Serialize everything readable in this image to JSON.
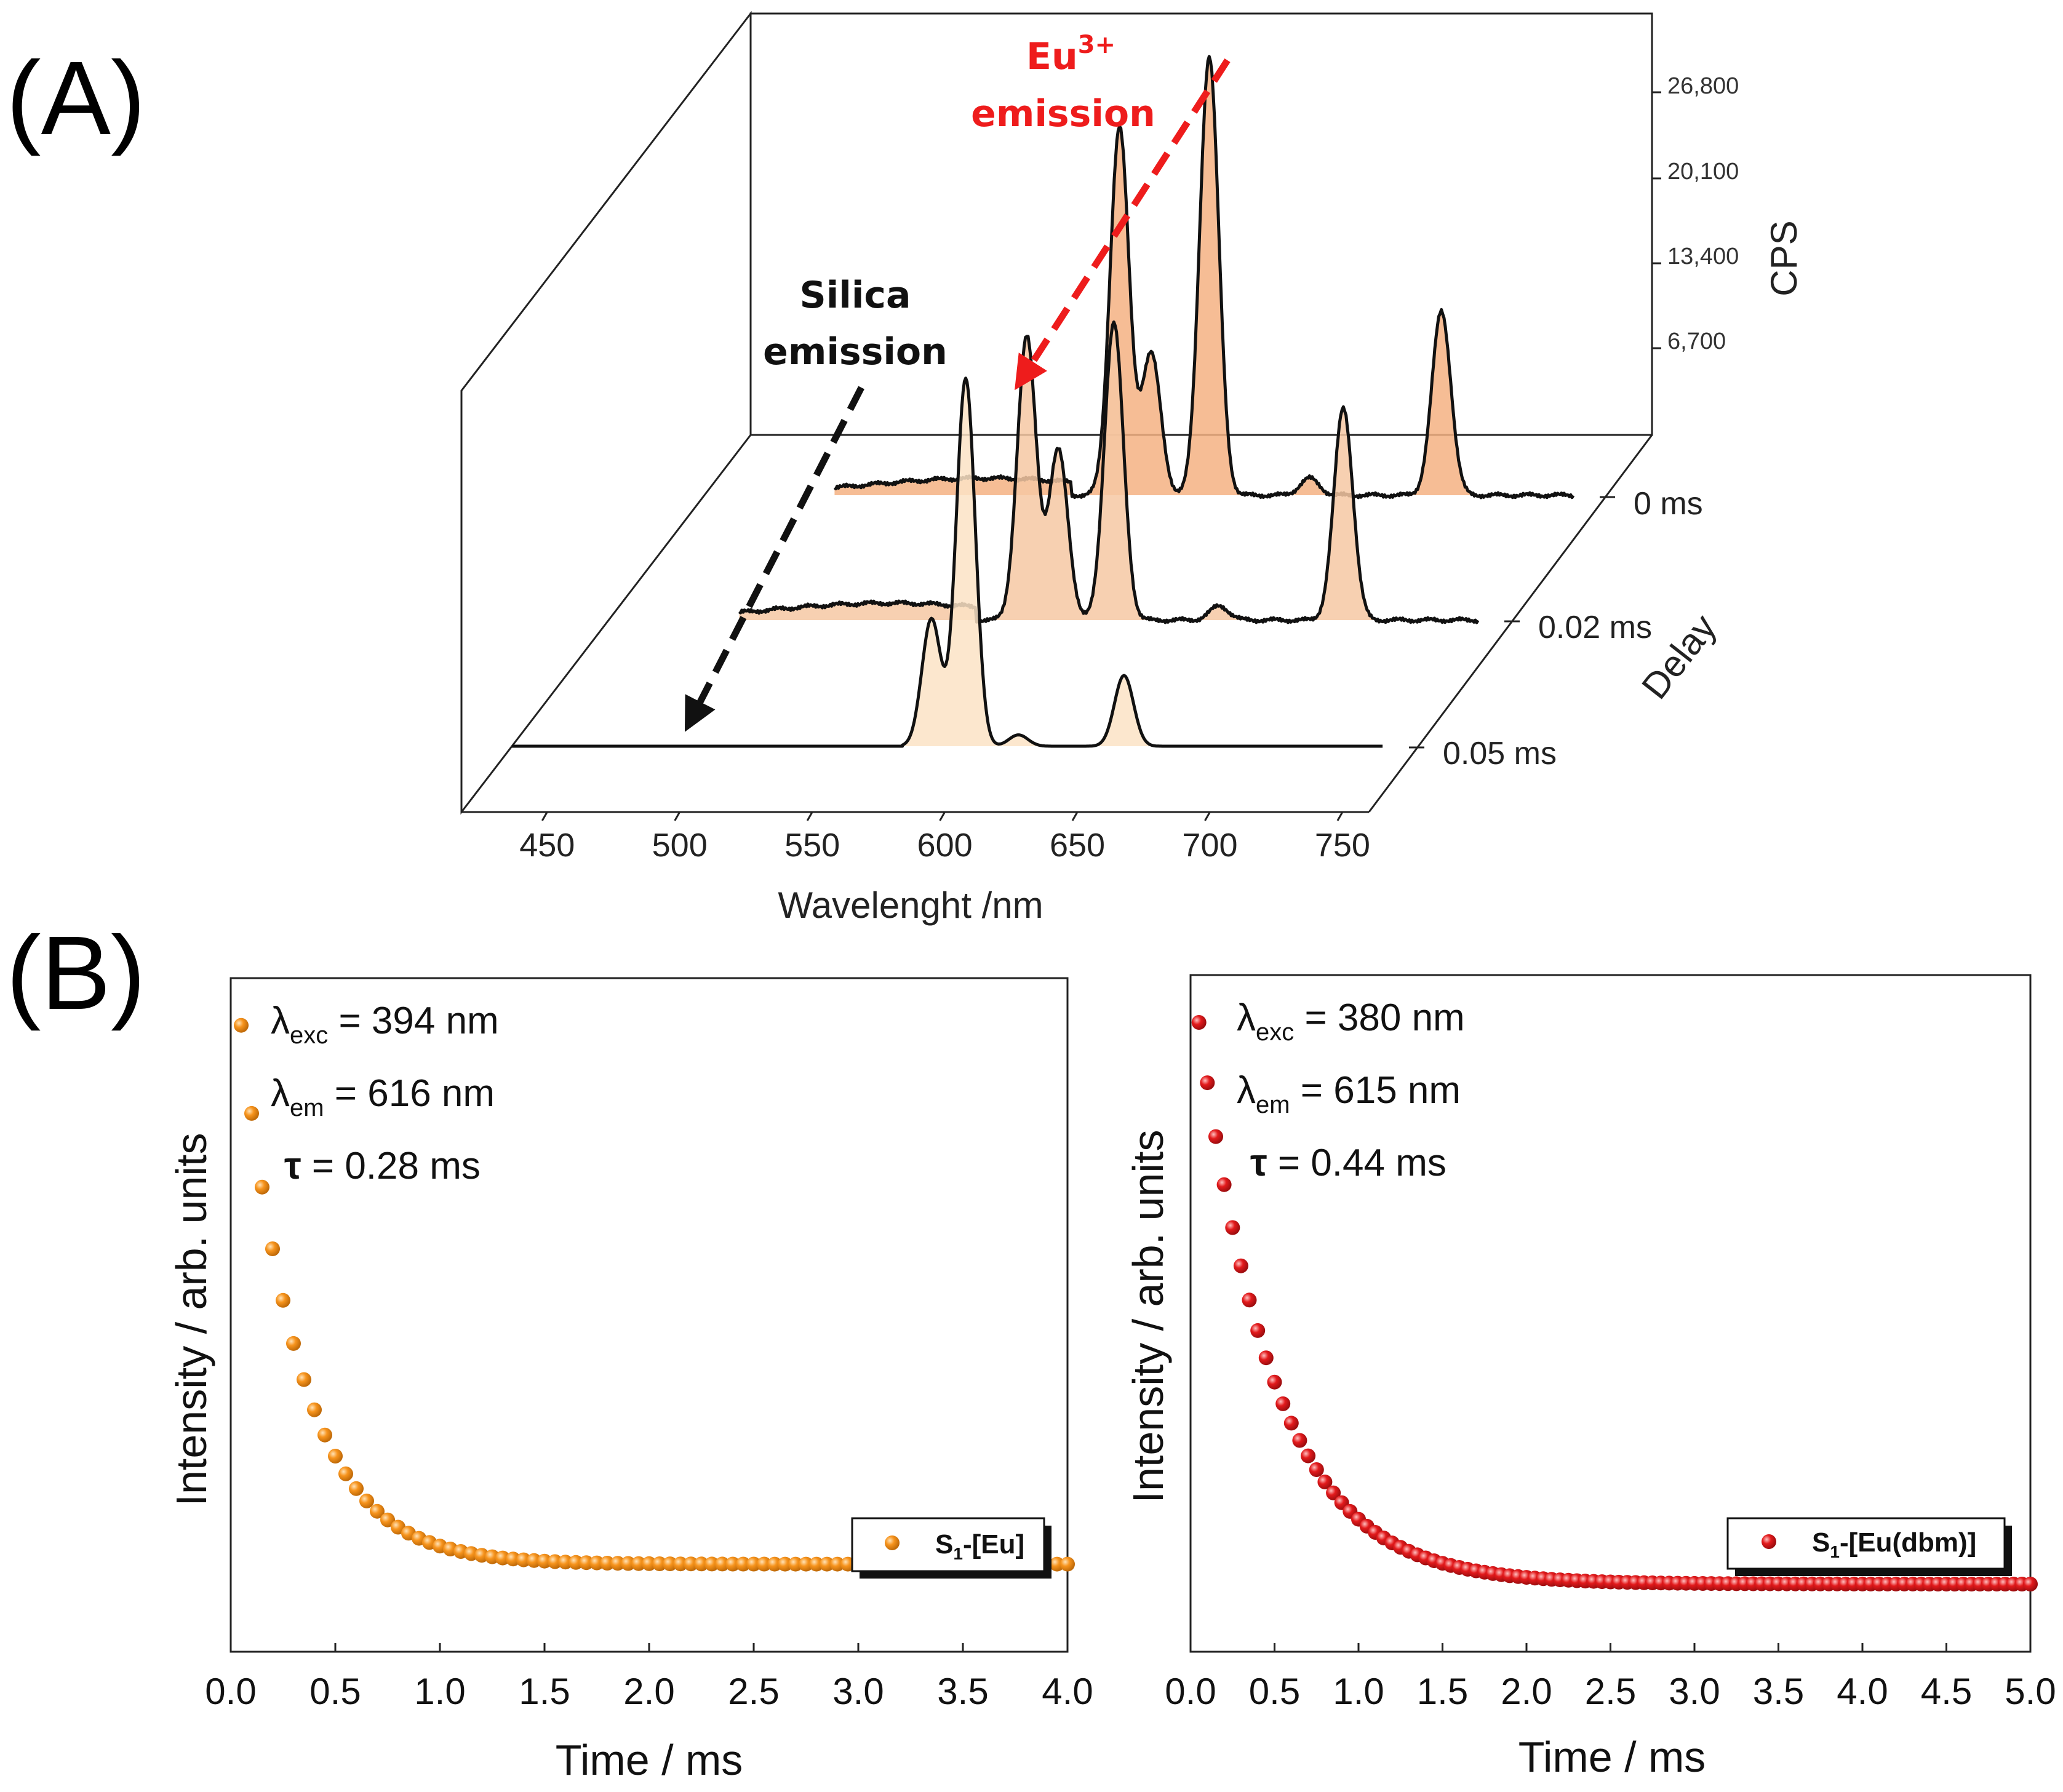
{
  "panel_labels": [
    "(A)",
    "(B)"
  ],
  "chart_data": [
    {
      "type": "line",
      "panel": "A",
      "style": "3D waterfall",
      "xlabel": "Wavelenght /nm",
      "x_ticks": [
        "450",
        "500",
        "550",
        "600",
        "650",
        "700",
        "750"
      ],
      "xlim": [
        420,
        760
      ],
      "zlabel": "CPS",
      "z_ticks": [
        "6,700",
        "13,400",
        "20,100",
        "26,800"
      ],
      "zlim": [
        0,
        30000
      ],
      "ylabel": "Delay",
      "series": [
        {
          "name": "0 ms",
          "peaks": [
            [
              578,
              26000
            ],
            [
              590,
              10000
            ],
            [
              612,
              31000
            ],
            [
              650,
              1200
            ],
            [
              700,
              13000
            ]
          ],
          "fill": "#f4b183"
        },
        {
          "name": "0.02 ms",
          "peaks": [
            [
              579,
              20000
            ],
            [
              591,
              12000
            ],
            [
              612,
              21000
            ],
            [
              652,
              1000
            ],
            [
              699,
              15000
            ]
          ],
          "fill": "#f6c8a3"
        },
        {
          "name": "0.05 ms",
          "peaks": [
            [
              579,
              9000
            ],
            [
              592,
              26000
            ],
            [
              612,
              800
            ],
            [
              652,
              5000
            ]
          ],
          "fill": "#fbe3c6"
        }
      ],
      "annotations": {
        "silica_line1": "Silica",
        "silica_line2": "emission",
        "eu_base": "Eu",
        "eu_sup": "3+",
        "eu_line2": "emission"
      }
    },
    {
      "type": "scatter",
      "panel": "B-left",
      "xlabel": "Time / ms",
      "ylabel": "Intensity / arb. units",
      "xlim": [
        0,
        4.0
      ],
      "x_ticks": [
        "0.0",
        "0.5",
        "1.0",
        "1.5",
        "2.0",
        "2.5",
        "3.0",
        "3.5",
        "4.0"
      ],
      "decay_tau": 0.28,
      "x_start": 0.05,
      "x_step": 0.05,
      "y_offset": 0.13,
      "color": "#f7941d",
      "legend": {
        "prefix": "S",
        "sub": "1",
        "rest": "-[Eu]"
      },
      "params": [
        {
          "symbol": "λ",
          "sub": "exc",
          "text": " = 394 nm"
        },
        {
          "symbol": "λ",
          "sub": "em",
          "text": " = 616 nm"
        },
        {
          "symbol": "τ",
          "sub": "",
          "text": " = 0.28 ms"
        }
      ]
    },
    {
      "type": "scatter",
      "panel": "B-right",
      "xlabel": "Time / ms",
      "ylabel": "Intensity / arb. units",
      "xlim": [
        0,
        5.0
      ],
      "x_ticks": [
        "0.0",
        "0.5",
        "1.0",
        "1.5",
        "2.0",
        "2.5",
        "3.0",
        "3.5",
        "4.0",
        "4.5",
        "5.0"
      ],
      "decay_tau": 0.44,
      "x_start": 0.05,
      "x_step": 0.05,
      "y_offset": 0.1,
      "color": "#e31a1c",
      "legend": {
        "prefix": "S",
        "sub": "1",
        "rest": "-[Eu(dbm)]"
      },
      "params": [
        {
          "symbol": "λ",
          "sub": "exc",
          "text": " = 380 nm"
        },
        {
          "symbol": "λ",
          "sub": "em",
          "text": " = 615 nm"
        },
        {
          "symbol": "τ",
          "sub": "",
          "text": " = 0.44 ms"
        }
      ]
    }
  ]
}
